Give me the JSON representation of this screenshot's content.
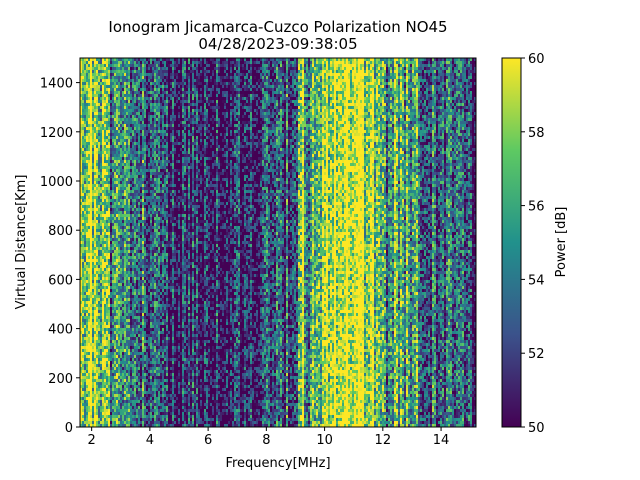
{
  "chart_data": {
    "type": "heatmap",
    "title": "Ionogram Jicamarca-Cuzco Polarization NO45",
    "subtitle": "04/28/2023-09:38:05",
    "xlabel": "Frequency[MHz]",
    "ylabel": "Virtual Distance[Km]",
    "xlim": [
      1.6,
      15.2
    ],
    "ylim": [
      0,
      1500
    ],
    "x_ticks": [
      2,
      4,
      6,
      8,
      10,
      12,
      14
    ],
    "y_ticks": [
      0,
      200,
      400,
      600,
      800,
      1000,
      1200,
      1400
    ],
    "colorbar": {
      "label": "Power [dB]",
      "range": [
        50,
        60
      ],
      "ticks": [
        50,
        52,
        54,
        56,
        58,
        60
      ],
      "colormap": "viridis"
    },
    "grid": false,
    "frequency_profile": {
      "x": [
        1.6,
        1.8,
        2.0,
        2.2,
        2.4,
        2.6,
        3.0,
        3.4,
        3.7,
        4.0,
        4.6,
        5.2,
        6.0,
        6.8,
        7.2,
        7.5,
        8.0,
        8.6,
        9.0,
        9.2,
        9.4,
        9.6,
        9.8,
        10.0,
        10.4,
        10.8,
        11.2,
        11.6,
        11.8,
        12.0,
        12.4,
        12.8,
        13.2,
        13.6,
        14.0,
        14.4,
        14.8,
        15.2
      ],
      "values": [
        59.5,
        57.5,
        59.5,
        58.5,
        57.0,
        55.0,
        54.0,
        54.5,
        53.5,
        52.5,
        51.5,
        51.0,
        51.0,
        51.0,
        51.5,
        52.5,
        51.5,
        52.5,
        53.5,
        59.5,
        56.0,
        56.5,
        58.0,
        59.0,
        59.8,
        59.9,
        59.5,
        59.0,
        56.0,
        54.5,
        56.0,
        56.5,
        55.0,
        54.0,
        53.5,
        52.5,
        51.5,
        50.5
      ]
    }
  }
}
